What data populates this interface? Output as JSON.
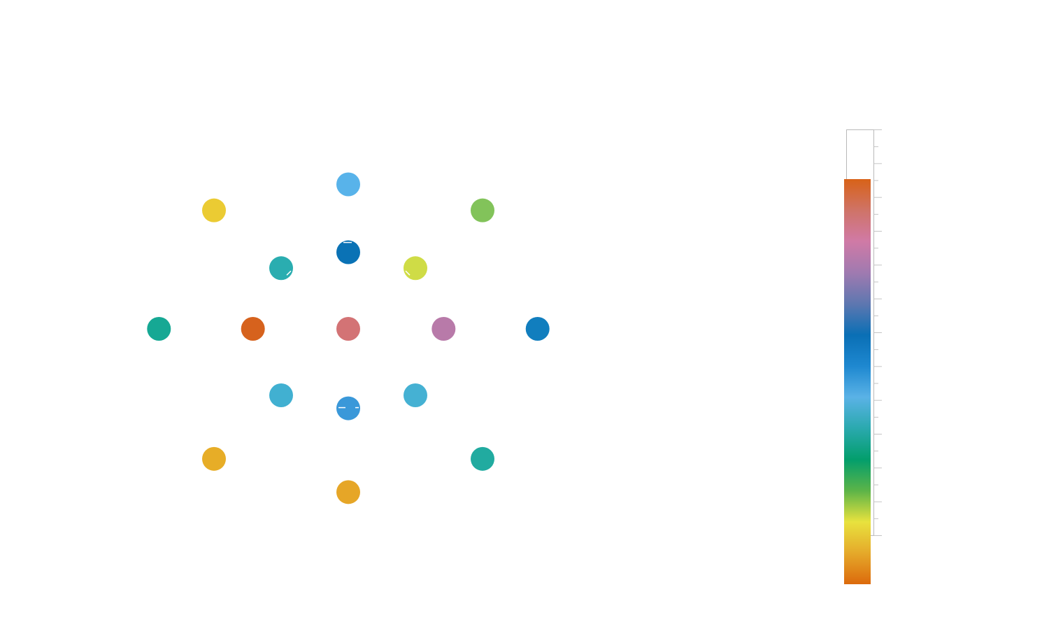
{
  "chart_data": {
    "type": "scatter",
    "title": "",
    "xlabel": "",
    "ylabel": "",
    "grid": false,
    "legend": "none",
    "colorbar": {
      "placement": "right",
      "tick_labels": []
    },
    "points": [
      {
        "x": 0,
        "y": 5.0,
        "color": "#58b3ea"
      },
      {
        "x": -5.0,
        "y": 4.1,
        "color": "#ebcb33"
      },
      {
        "x": 5.0,
        "y": 4.1,
        "color": "#82c35a"
      },
      {
        "x": 0,
        "y": 2.65,
        "color": "#0a72b5",
        "marker": "top-line"
      },
      {
        "x": -2.5,
        "y": 2.1,
        "color": "#2aadb0",
        "marker": "diag-bottom-right"
      },
      {
        "x": 2.5,
        "y": 2.1,
        "color": "#cfdc46",
        "marker": "diag-bottom-left"
      },
      {
        "x": -7.05,
        "y": 0,
        "color": "#16a894"
      },
      {
        "x": -3.55,
        "y": 0,
        "color": "#d6621d"
      },
      {
        "x": 0,
        "y": 0,
        "color": "#d37375"
      },
      {
        "x": 3.55,
        "y": 0,
        "color": "#b87aa9"
      },
      {
        "x": 7.05,
        "y": 0,
        "color": "#117ebe"
      },
      {
        "x": -2.5,
        "y": -2.3,
        "color": "#41b0d1"
      },
      {
        "x": 2.5,
        "y": -2.3,
        "color": "#45b1d3"
      },
      {
        "x": 0,
        "y": -2.75,
        "color": "#3a98d9",
        "marker": "double-line"
      },
      {
        "x": -5.0,
        "y": -4.5,
        "color": "#e7ad27"
      },
      {
        "x": 5.0,
        "y": -4.5,
        "color": "#21aba0"
      },
      {
        "x": 0,
        "y": -5.65,
        "color": "#e6a627"
      }
    ],
    "colorscale": [
      "#d86218",
      "#cf7367",
      "#d07aa6",
      "#a07ab0",
      "#5e77b0",
      "#0a6fb5",
      "#1e88d0",
      "#5ab2e6",
      "#2aa9ae",
      "#039e6c",
      "#5cb448",
      "#e8e23e",
      "#e5a92a",
      "#dc6a0c"
    ]
  }
}
